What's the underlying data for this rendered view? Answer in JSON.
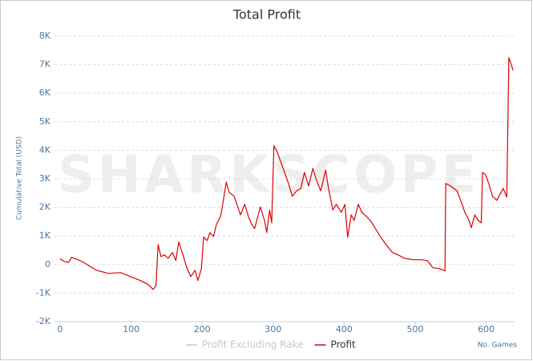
{
  "chart_data": {
    "type": "line",
    "title": "Total Profit",
    "watermark": "SHARKSCOPE",
    "y_label": "Cumulative Total (USD)",
    "x_label": "No. Games",
    "x": [
      0,
      6,
      12,
      16,
      25,
      33,
      40,
      51,
      68,
      85,
      96,
      113,
      124,
      131,
      135,
      138,
      142,
      147,
      152,
      158,
      163,
      167,
      173,
      178,
      184,
      190,
      194,
      199,
      202,
      207,
      211,
      216,
      220,
      226,
      229,
      234,
      238,
      245,
      249,
      254,
      260,
      265,
      270,
      274,
      279,
      282,
      288,
      291,
      295,
      298,
      301,
      306,
      310,
      316,
      322,
      327,
      333,
      339,
      344,
      350,
      356,
      361,
      367,
      374,
      378,
      384,
      389,
      396,
      401,
      405,
      410,
      414,
      420,
      425,
      431,
      437,
      444,
      451,
      459,
      468,
      476,
      485,
      497,
      508,
      517,
      525,
      534,
      542,
      543,
      550,
      559,
      564,
      570,
      576,
      579,
      584,
      589,
      593,
      595,
      599,
      604,
      609,
      615,
      621,
      624,
      629,
      632,
      638
    ],
    "series": [
      {
        "name": "Profit Excluding Rake",
        "color": "#c8c8c8",
        "visible": false
      },
      {
        "name": "Profit",
        "color": "#dd0000",
        "visible": true,
        "values": [
          200,
          110,
          80,
          250,
          170,
          80,
          -30,
          -200,
          -310,
          -280,
          -390,
          -560,
          -700,
          -870,
          -730,
          700,
          280,
          340,
          220,
          420,
          140,
          790,
          340,
          -80,
          -420,
          -200,
          -560,
          -140,
          960,
          840,
          1120,
          980,
          1400,
          1690,
          2110,
          2890,
          2530,
          2390,
          2110,
          1740,
          2110,
          1690,
          1400,
          1260,
          1740,
          2020,
          1540,
          1120,
          1910,
          1460,
          4160,
          3930,
          3650,
          3230,
          2810,
          2390,
          2580,
          2670,
          3230,
          2750,
          3370,
          2950,
          2580,
          3310,
          2670,
          1910,
          2110,
          1830,
          2110,
          960,
          1740,
          1540,
          2110,
          1830,
          1690,
          1540,
          1260,
          980,
          700,
          420,
          340,
          220,
          170,
          170,
          140,
          -110,
          -140,
          -220,
          2840,
          2750,
          2580,
          2250,
          1830,
          1540,
          1290,
          1740,
          1540,
          1460,
          3230,
          3150,
          2810,
          2390,
          2250,
          2530,
          2670,
          2360,
          7250,
          6800
        ]
      }
    ],
    "xlim": [
      0,
      640
    ],
    "xticks": [
      0,
      100,
      200,
      300,
      400,
      500,
      600
    ],
    "ylim": [
      -2000,
      8000
    ],
    "yticks": [
      {
        "value": -2000,
        "label": "-2K"
      },
      {
        "value": -1000,
        "label": "-1K"
      },
      0,
      {
        "value": 1000,
        "label": "1K"
      },
      {
        "value": 2000,
        "label": "2K"
      },
      {
        "value": 3000,
        "label": "3K"
      },
      {
        "value": 4000,
        "label": "4K"
      },
      {
        "value": 5000,
        "label": "5K"
      },
      {
        "value": 6000,
        "label": "6K"
      },
      {
        "value": 7000,
        "label": "7K"
      },
      {
        "value": 8000,
        "label": "8K"
      }
    ],
    "grid": true
  }
}
